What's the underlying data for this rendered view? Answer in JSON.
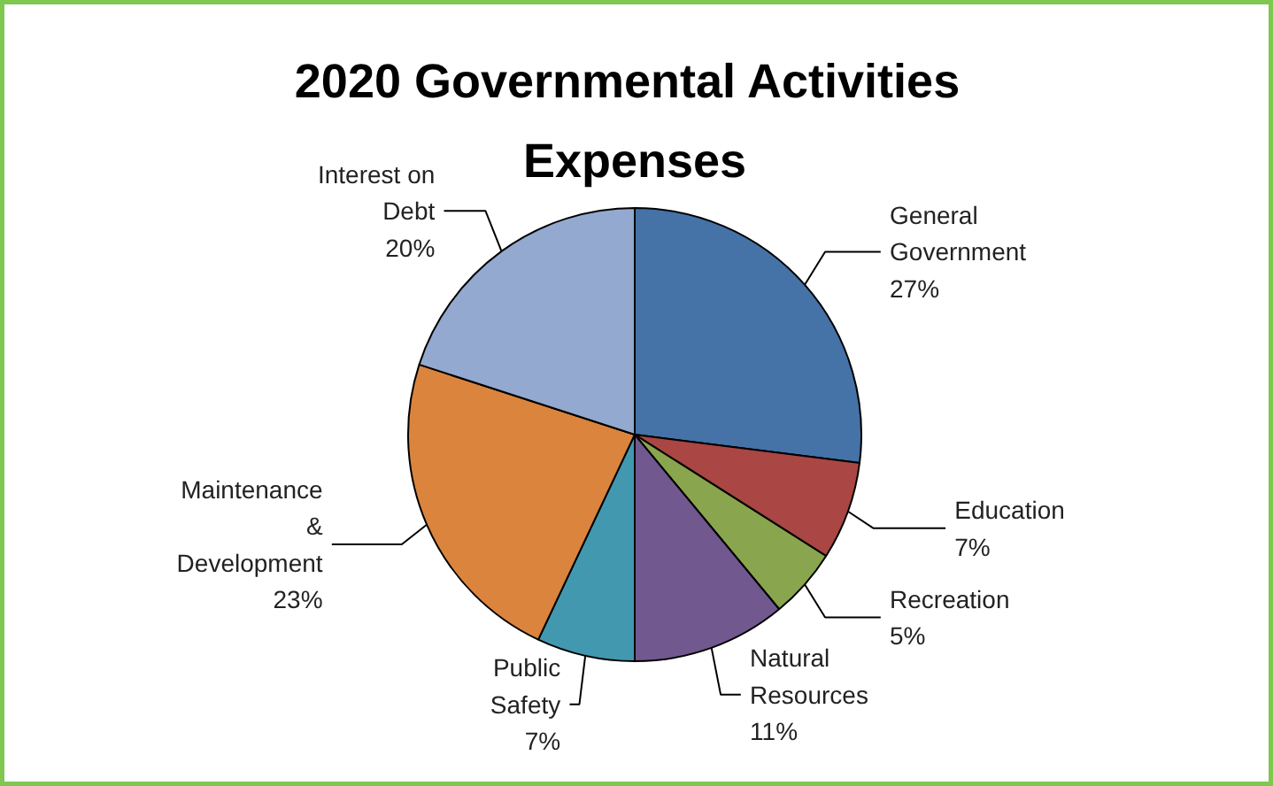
{
  "chart_data": {
    "type": "pie",
    "title": "2020 Governmental  Activities Expenses",
    "categories": [
      "General Government",
      "Education",
      "Recreation",
      "Natural Resources",
      "Public Safety",
      "Maintenance & Development",
      "Interest on Debt"
    ],
    "values": [
      27,
      7,
      5,
      11,
      7,
      23,
      20
    ],
    "colors": [
      "#4572a7",
      "#aa4643",
      "#89a54e",
      "#71588f",
      "#4198af",
      "#db843d",
      "#93a9cf"
    ],
    "data_labels": true,
    "value_labels": [
      "27%",
      "7%",
      "5%",
      "11%",
      "7%",
      "23%",
      "20%"
    ]
  }
}
